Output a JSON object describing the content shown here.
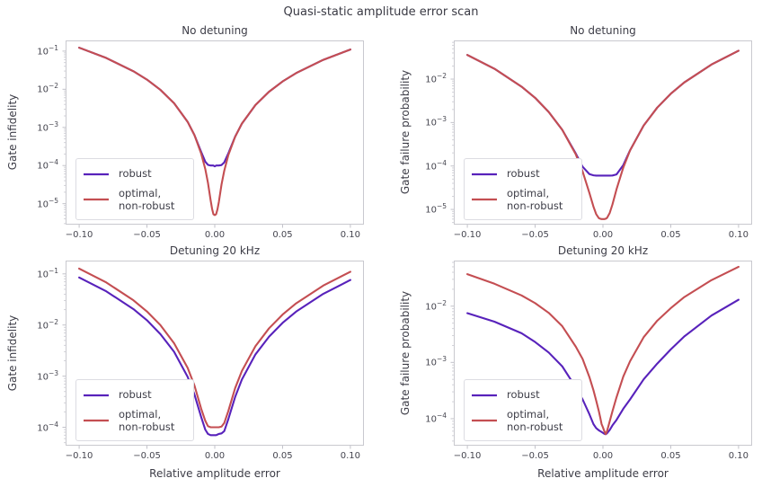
{
  "figure": {
    "suptitle": "Quasi-static amplitude error scan",
    "background": "#ffffff",
    "text_color": "#3d3d47",
    "tick_text_color": "#45454f",
    "spine_color": "#c9c9cf",
    "tick_color": "#c2c2c9",
    "minor_tick_color": "#d3d3d9",
    "legend_border_color": "#dcdce2",
    "legend_background": "#ffffff"
  },
  "palette": {
    "robust": "#5822bb",
    "optimal_non_robust": "#c44e52"
  },
  "chart_data": [
    {
      "id": "top-left",
      "type": "line",
      "title": "No detuning",
      "xlabel": "",
      "ylabel": "Gate infidelity",
      "xlim": [
        -0.11,
        0.11
      ],
      "ylim_log10": [
        -5.55,
        -0.72
      ],
      "x_tick_values": [
        -0.1,
        -0.05,
        0.0,
        0.05,
        0.1
      ],
      "x_tick_labels": [
        "−0.10",
        "−0.05",
        "0.00",
        "0.05",
        "0.10"
      ],
      "y_tick_exponents": [
        -1,
        -2,
        -3,
        -4,
        -5
      ],
      "grid": false,
      "legend_position": "lower left",
      "x": [
        -0.1,
        -0.08,
        -0.06,
        -0.05,
        -0.04,
        -0.03,
        -0.02,
        -0.015,
        -0.01,
        -0.007,
        -0.005,
        -0.003,
        -0.002,
        -0.001,
        0,
        0.001,
        0.002,
        0.003,
        0.005,
        0.007,
        0.01,
        0.015,
        0.02,
        0.03,
        0.04,
        0.05,
        0.06,
        0.08,
        0.1
      ],
      "series": [
        {
          "name": "robust",
          "color_key": "robust",
          "y": [
            0.123,
            0.066,
            0.0297,
            0.0179,
            0.0096,
            0.0043,
            0.0014,
            0.00063,
            0.000227,
            0.000126,
            0.000104,
            0.0001,
            0.0001,
            0.0001,
            9.5e-05,
            0.0001,
            0.0001,
            0.0001,
            0.000103,
            0.000121,
            0.000208,
            0.00057,
            0.00125,
            0.00385,
            0.0086,
            0.016,
            0.0265,
            0.059,
            0.11
          ]
        },
        {
          "name": "optimal,\nnon-robust",
          "color_key": "optimal_non_robust",
          "y": [
            0.123,
            0.066,
            0.0297,
            0.0179,
            0.0096,
            0.0043,
            0.0014,
            0.00063,
            0.000204,
            8.1e-05,
            3.5e-05,
            1.2e-05,
            7.4e-06,
            5.3e-06,
            5e-06,
            5.3e-06,
            7.1e-06,
            1.1e-05,
            3.2e-05,
            7.3e-05,
            0.000187,
            0.000565,
            0.00126,
            0.00386,
            0.0086,
            0.016,
            0.0265,
            0.059,
            0.11
          ]
        }
      ]
    },
    {
      "id": "top-right",
      "type": "line",
      "title": "No detuning",
      "xlabel": "",
      "ylabel": "Gate failure probability",
      "xlim": [
        -0.11,
        0.11
      ],
      "ylim_log10": [
        -5.35,
        -1.11
      ],
      "x_tick_values": [
        -0.1,
        -0.05,
        0.0,
        0.05,
        0.1
      ],
      "x_tick_labels": [
        "−0.10",
        "−0.05",
        "0.00",
        "0.05",
        "0.10"
      ],
      "y_tick_exponents": [
        -2,
        -3,
        -4,
        -5
      ],
      "grid": false,
      "legend_position": "lower left",
      "x": [
        -0.1,
        -0.08,
        -0.06,
        -0.05,
        -0.04,
        -0.03,
        -0.02,
        -0.015,
        -0.01,
        -0.007,
        -0.005,
        -0.003,
        -0.002,
        -0.001,
        0,
        0.001,
        0.002,
        0.003,
        0.005,
        0.007,
        0.01,
        0.015,
        0.02,
        0.03,
        0.04,
        0.05,
        0.06,
        0.08,
        0.1
      ],
      "series": [
        {
          "name": "robust",
          "color_key": "robust",
          "y": [
            0.036,
            0.0173,
            0.0067,
            0.0037,
            0.00175,
            0.00068,
            0.000193,
            9.6e-05,
            6.5e-05,
            6.1e-05,
            6e-05,
            6e-05,
            6e-05,
            6e-05,
            6e-05,
            6e-05,
            6e-05,
            6e-05,
            6e-05,
            6.04e-05,
            6.4e-05,
            0.000105,
            0.00023,
            0.00085,
            0.0022,
            0.0046,
            0.0084,
            0.0216,
            0.045
          ]
        },
        {
          "name": "optimal,\nnon-robust",
          "color_key": "optimal_non_robust",
          "y": [
            0.036,
            0.0173,
            0.0067,
            0.0037,
            0.00175,
            0.00068,
            0.000184,
            7.5e-05,
            2.4e-05,
            1.16e-05,
            7.8e-06,
            6.3e-06,
            6.1e-06,
            6e-06,
            6e-06,
            6e-06,
            6.1e-06,
            6.4e-06,
            8.3e-06,
            1.3e-05,
            2.9e-05,
            9.2e-05,
            0.000228,
            0.00085,
            0.0022,
            0.0046,
            0.0084,
            0.0216,
            0.045
          ]
        }
      ]
    },
    {
      "id": "bottom-left",
      "type": "line",
      "title": "Detuning 20 kHz",
      "xlabel": "Relative amplitude error",
      "ylabel": "Gate infidelity",
      "xlim": [
        -0.11,
        0.11
      ],
      "ylim_log10": [
        -4.36,
        -0.74
      ],
      "x_tick_values": [
        -0.1,
        -0.05,
        0.0,
        0.05,
        0.1
      ],
      "x_tick_labels": [
        "−0.10",
        "−0.05",
        "0.00",
        "0.05",
        "0.10"
      ],
      "y_tick_exponents": [
        -1,
        -2,
        -3,
        -4
      ],
      "grid": false,
      "legend_position": "lower left",
      "x": [
        -0.1,
        -0.08,
        -0.06,
        -0.05,
        -0.04,
        -0.03,
        -0.02,
        -0.015,
        -0.01,
        -0.007,
        -0.005,
        -0.003,
        -0.002,
        -0.001,
        0,
        0.001,
        0.002,
        0.003,
        0.005,
        0.007,
        0.01,
        0.015,
        0.02,
        0.03,
        0.04,
        0.05,
        0.06,
        0.08,
        0.1
      ],
      "series": [
        {
          "name": "robust",
          "color_key": "robust",
          "y": [
            0.085,
            0.0456,
            0.0205,
            0.0124,
            0.0066,
            0.003,
            0.00097,
            0.00044,
            0.000158,
            9e-05,
            7.4e-05,
            7e-05,
            7e-05,
            7e-05,
            7e-05,
            7e-05,
            7.2e-05,
            7.4e-05,
            7.6e-05,
            8.4e-05,
            0.000144,
            0.00039,
            0.00086,
            0.00266,
            0.0059,
            0.011,
            0.0183,
            0.0407,
            0.0759
          ]
        },
        {
          "name": "optimal,\nnon-robust",
          "color_key": "optimal_non_robust",
          "y": [
            0.127,
            0.068,
            0.0305,
            0.0184,
            0.0099,
            0.0044,
            0.00145,
            0.00066,
            0.00023,
            0.000134,
            0.000105,
            0.0001,
            0.0001,
            0.0001,
            0.0001,
            0.0001,
            0.0001,
            0.0001,
            0.000103,
            0.000121,
            0.000208,
            0.00058,
            0.00126,
            0.00385,
            0.0086,
            0.016,
            0.0265,
            0.059,
            0.11
          ]
        }
      ]
    },
    {
      "id": "bottom-right",
      "type": "line",
      "title": "Detuning 20 kHz",
      "xlabel": "Relative amplitude error",
      "ylabel": "Gate failure probability",
      "xlim": [
        -0.11,
        0.11
      ],
      "ylim_log10": [
        -4.48,
        -1.19
      ],
      "x_tick_values": [
        -0.1,
        -0.05,
        0.0,
        0.05,
        0.1
      ],
      "x_tick_labels": [
        "−0.10",
        "−0.05",
        "0.00",
        "0.05",
        "0.10"
      ],
      "y_tick_exponents": [
        -2,
        -3,
        -4
      ],
      "grid": false,
      "legend_position": "lower left",
      "x": [
        -0.1,
        -0.08,
        -0.06,
        -0.05,
        -0.04,
        -0.03,
        -0.02,
        -0.015,
        -0.01,
        -0.007,
        -0.005,
        -0.003,
        -0.002,
        -0.001,
        0,
        0.001,
        0.002,
        0.003,
        0.005,
        0.007,
        0.01,
        0.015,
        0.02,
        0.03,
        0.04,
        0.05,
        0.06,
        0.08,
        0.1
      ],
      "series": [
        {
          "name": "robust",
          "color_key": "robust",
          "y": [
            0.0075,
            0.0053,
            0.0033,
            0.0023,
            0.0015,
            0.00085,
            0.00036,
            0.00022,
            0.00012,
            8e-05,
            6.8e-05,
            6.2e-05,
            6e-05,
            5.8e-05,
            5.6e-05,
            5.4e-05,
            5.3e-05,
            5.5e-05,
            6.3e-05,
            7.6e-05,
            9.5e-05,
            0.00015,
            0.00022,
            0.0005,
            0.00095,
            0.0017,
            0.0029,
            0.0068,
            0.013
          ]
        },
        {
          "name": "optimal,\nnon-robust",
          "color_key": "optimal_non_robust",
          "y": [
            0.037,
            0.025,
            0.0155,
            0.0113,
            0.0076,
            0.0044,
            0.0019,
            0.00115,
            0.00055,
            0.00032,
            0.00021,
            0.000135,
            0.000105,
            8e-05,
            7e-05,
            6e-05,
            5.3e-05,
            6e-05,
            9e-05,
            0.000135,
            0.00024,
            0.00056,
            0.00105,
            0.0028,
            0.0055,
            0.0092,
            0.0145,
            0.029,
            0.05
          ]
        }
      ]
    }
  ]
}
